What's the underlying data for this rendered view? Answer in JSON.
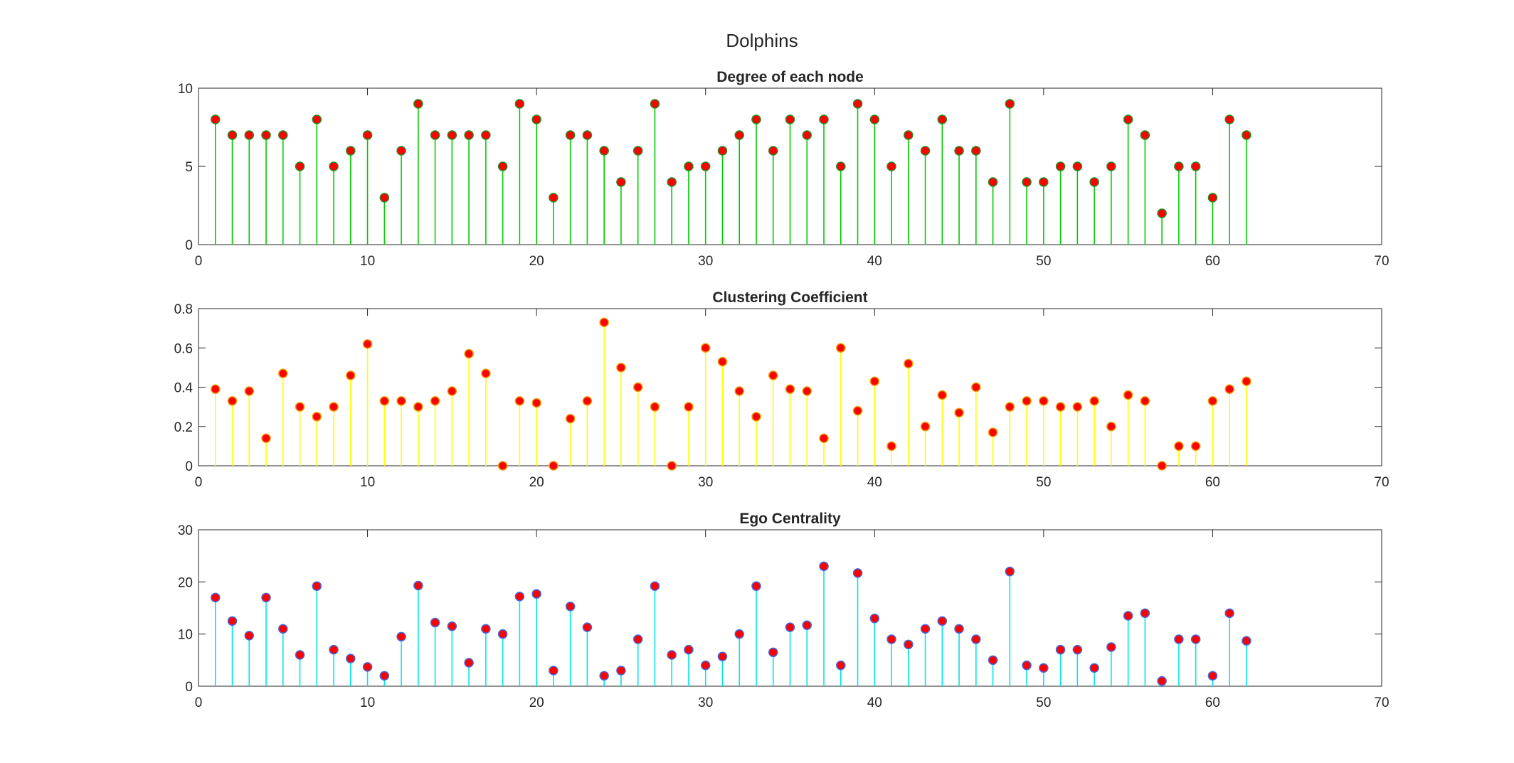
{
  "figure": {
    "title": "Dolphins"
  },
  "chart_data": [
    {
      "type": "stem",
      "title": "Degree of each node",
      "xlim": [
        0,
        70
      ],
      "ylim": [
        0,
        10
      ],
      "xticks": [
        0,
        10,
        20,
        30,
        40,
        50,
        60,
        70
      ],
      "yticks": [
        0,
        5,
        10
      ],
      "stem_color": "#00cc00",
      "marker_face": "#ff0000",
      "marker_edge": "#228b22",
      "x": [
        1,
        2,
        3,
        4,
        5,
        6,
        7,
        8,
        9,
        10,
        11,
        12,
        13,
        14,
        15,
        16,
        17,
        18,
        19,
        20,
        21,
        22,
        23,
        24,
        25,
        26,
        27,
        28,
        29,
        30,
        31,
        32,
        33,
        34,
        35,
        36,
        37,
        38,
        39,
        40,
        41,
        42,
        43,
        44,
        45,
        46,
        47,
        48,
        49,
        50,
        51,
        52,
        53,
        54,
        55,
        56,
        57,
        58,
        59,
        60,
        61,
        62
      ],
      "values": [
        8,
        7,
        7,
        7,
        7,
        5,
        8,
        5,
        6,
        7,
        3,
        6,
        9,
        7,
        7,
        7,
        7,
        5,
        9,
        8,
        3,
        7,
        7,
        6,
        4,
        6,
        9,
        4,
        5,
        5,
        6,
        7,
        8,
        6,
        8,
        7,
        8,
        5,
        9,
        8,
        5,
        7,
        6,
        8,
        6,
        6,
        4,
        9,
        4,
        4,
        5,
        5,
        4,
        5,
        8,
        7,
        2,
        5,
        5,
        3,
        8,
        7
      ]
    },
    {
      "type": "stem",
      "title": "Clustering Coefficient",
      "xlim": [
        0,
        70
      ],
      "ylim": [
        0,
        0.8
      ],
      "xticks": [
        0,
        10,
        20,
        30,
        40,
        50,
        60,
        70
      ],
      "yticks": [
        0,
        0.2,
        0.4,
        0.6,
        0.8
      ],
      "stem_color": "#ffff00",
      "marker_face": "#ff0000",
      "marker_edge": "#e8a000",
      "x": [
        1,
        2,
        3,
        4,
        5,
        6,
        7,
        8,
        9,
        10,
        11,
        12,
        13,
        14,
        15,
        16,
        17,
        18,
        19,
        20,
        21,
        22,
        23,
        24,
        25,
        26,
        27,
        28,
        29,
        30,
        31,
        32,
        33,
        34,
        35,
        36,
        37,
        38,
        39,
        40,
        41,
        42,
        43,
        44,
        45,
        46,
        47,
        48,
        49,
        50,
        51,
        52,
        53,
        54,
        55,
        56,
        57,
        58,
        59,
        60,
        61,
        62
      ],
      "values": [
        0.39,
        0.33,
        0.38,
        0.14,
        0.47,
        0.3,
        0.25,
        0.3,
        0.46,
        0.62,
        0.33,
        0.33,
        0.3,
        0.33,
        0.38,
        0.57,
        0.47,
        0,
        0.33,
        0.32,
        0,
        0.24,
        0.33,
        0.73,
        0.5,
        0.4,
        0.3,
        0,
        0.3,
        0.6,
        0.53,
        0.38,
        0.25,
        0.46,
        0.39,
        0.38,
        0.14,
        0.6,
        0.28,
        0.43,
        0.1,
        0.52,
        0.2,
        0.36,
        0.27,
        0.4,
        0.17,
        0.3,
        0.33,
        0.33,
        0.3,
        0.3,
        0.33,
        0.2,
        0.36,
        0.33,
        0,
        0.1,
        0.1,
        0.33,
        0.39,
        0.43
      ]
    },
    {
      "type": "stem",
      "title": "Ego Centrality",
      "xlim": [
        0,
        70
      ],
      "ylim": [
        0,
        30
      ],
      "xticks": [
        0,
        10,
        20,
        30,
        40,
        50,
        60,
        70
      ],
      "yticks": [
        0,
        10,
        20,
        30
      ],
      "stem_color": "#00e5ee",
      "marker_face": "#ff0000",
      "marker_edge": "#4169e1",
      "x": [
        1,
        2,
        3,
        4,
        5,
        6,
        7,
        8,
        9,
        10,
        11,
        12,
        13,
        14,
        15,
        16,
        17,
        18,
        19,
        20,
        21,
        22,
        23,
        24,
        25,
        26,
        27,
        28,
        29,
        30,
        31,
        32,
        33,
        34,
        35,
        36,
        37,
        38,
        39,
        40,
        41,
        42,
        43,
        44,
        45,
        46,
        47,
        48,
        49,
        50,
        51,
        52,
        53,
        54,
        55,
        56,
        57,
        58,
        59,
        60,
        61,
        62
      ],
      "values": [
        17,
        12.5,
        9.7,
        17,
        11,
        6,
        19.2,
        7,
        5.3,
        3.7,
        2,
        9.5,
        19.3,
        12.2,
        11.5,
        4.5,
        11,
        10,
        17.2,
        17.7,
        3,
        15.3,
        11.3,
        2,
        3,
        9,
        19.2,
        6,
        7,
        4,
        5.7,
        10,
        19.2,
        6.5,
        11.3,
        11.7,
        23,
        4,
        21.7,
        13,
        9,
        8,
        11,
        12.5,
        11,
        9,
        5,
        22,
        4,
        3.5,
        7,
        7,
        3.5,
        7.5,
        13.5,
        14,
        1,
        9,
        9,
        2,
        14,
        8.7
      ]
    }
  ]
}
